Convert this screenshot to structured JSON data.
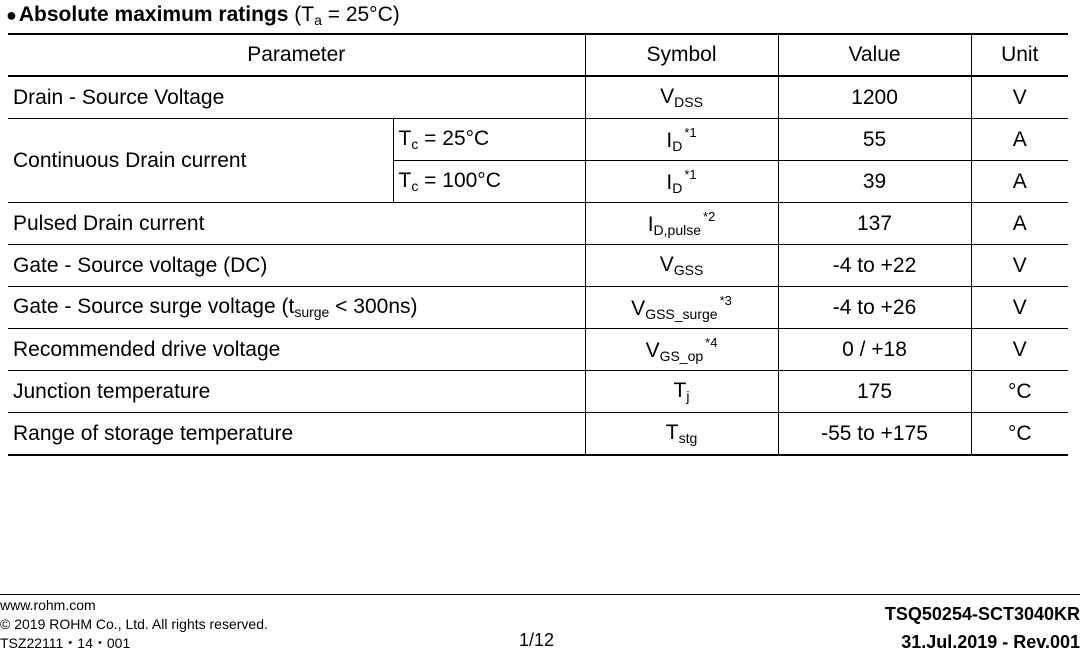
{
  "heading": {
    "bullet": "●",
    "title": "Absolute maximum ratings",
    "condition_open": " (T",
    "condition_sub": "a",
    "condition_close": " = 25°C)"
  },
  "headers": {
    "parameter": "Parameter",
    "symbol": "Symbol",
    "value": "Value",
    "unit": "Unit"
  },
  "rows": {
    "vdss": {
      "parameter": "Drain - Source Voltage",
      "sym": "V",
      "sym_sub": "DSS",
      "value": "1200",
      "unit": "V"
    },
    "id": {
      "parameter": "Continuous Drain current",
      "cond1_main": "T",
      "cond1_sub": "c",
      "cond1_rest": " = 25°C",
      "cond2_main": "T",
      "cond2_sub": "c",
      "cond2_rest": " = 100°C",
      "sym": "I",
      "sym_sub": "D",
      "sym_note": "*1",
      "value1": "55",
      "value2": "39",
      "unit": "A"
    },
    "idpulse": {
      "parameter": "Pulsed Drain current",
      "sym": "I",
      "sym_sub": "D,pulse",
      "sym_note": "*2",
      "value": "137",
      "unit": "A"
    },
    "vgss": {
      "parameter": "Gate - Source voltage (DC)",
      "sym": "V",
      "sym_sub": "GSS",
      "value": "-4 to +22",
      "unit": "V"
    },
    "vgss_surge": {
      "parameter": "Gate - Source surge voltage (t",
      "param_sub": "surge",
      "param_rest": " < 300ns)",
      "sym": "V",
      "sym_sub": "GSS_surge",
      "sym_note": "*3",
      "value": "-4 to +26",
      "unit": "V"
    },
    "vgs_op": {
      "parameter": "Recommended drive voltage",
      "sym": "V",
      "sym_sub": "GS_op",
      "sym_note": "*4",
      "value": "0 / +18",
      "unit": "V"
    },
    "tj": {
      "parameter": "Junction temperature",
      "sym": "T",
      "sym_sub": "j",
      "value": "175",
      "unit": "°C"
    },
    "tstg": {
      "parameter": "Range of storage temperature",
      "sym": "T",
      "sym_sub": "stg",
      "value": "-55 to +175",
      "unit": "°C"
    }
  },
  "footer": {
    "url": "www.rohm.com",
    "copyright": "© 2019 ROHM Co., Ltd. All rights reserved.",
    "code": "TSZ22111・14・001",
    "page": "1/12",
    "doc_id": "TSQ50254-SCT3040KR",
    "rev": "31.Jul.2019 - Rev.001"
  }
}
